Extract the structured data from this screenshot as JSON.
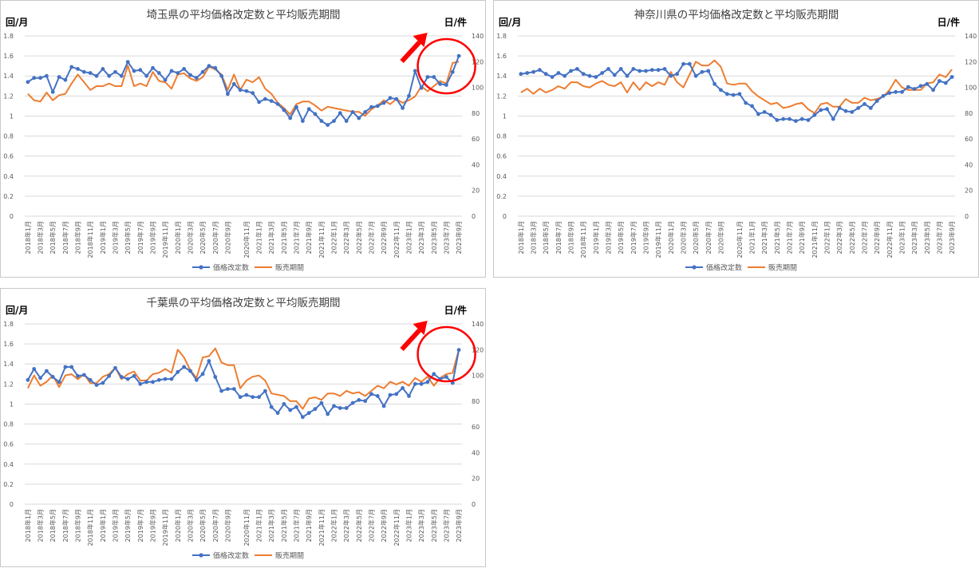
{
  "colors": {
    "price_revisions": "#4472c4",
    "sale_period": "#ed7d31",
    "highlight": "#ff0000"
  },
  "chart_data": [
    {
      "type": "line",
      "title": "埼玉県の平均価格改定数と平均販売期間",
      "left_unit": "回/月",
      "right_unit": "日/件",
      "y_left": {
        "range": [
          0,
          1.8
        ],
        "ticks": [
          "0",
          "0.2",
          "0.4",
          "0.6",
          "0.8",
          "1",
          "1.2",
          "1.4",
          "1.6",
          "1.8"
        ]
      },
      "y_right": {
        "range": [
          0,
          140
        ],
        "ticks": [
          "0",
          "20",
          "40",
          "60",
          "80",
          "100",
          "120",
          "140"
        ]
      },
      "x_labels": [
        "2018年1月",
        "2018年3月",
        "2018年5月",
        "2018年7月",
        "2018年9月",
        "2018年11月",
        "2019年1月",
        "2019年3月",
        "2019年5月",
        "2019年7月",
        "2019年9月",
        "2019年11月",
        "2020年1月",
        "2020年3月",
        "2020年5月",
        "2020年7月",
        "2020年9月",
        "2020年11月",
        "2021年1月",
        "2021年3月",
        "2021年5月",
        "2021年7月",
        "2021年9月",
        "2021年11月",
        "2022年1月",
        "2022年3月",
        "2022年5月",
        "2022年7月",
        "2022年9月",
        "2022年11月",
        "2023年1月",
        "2023年3月",
        "2023年5月",
        "2023年7月",
        "2023年9月"
      ],
      "highlight": true,
      "series": [
        {
          "name": "価格改定数",
          "axis": "left",
          "marker": true,
          "values": [
            1.34,
            1.38,
            1.38,
            1.4,
            1.24,
            1.39,
            1.36,
            1.49,
            1.47,
            1.44,
            1.43,
            1.4,
            1.47,
            1.4,
            1.44,
            1.4,
            1.54,
            1.45,
            1.46,
            1.4,
            1.48,
            1.43,
            1.36,
            1.45,
            1.43,
            1.47,
            1.41,
            1.38,
            1.44,
            1.5,
            1.48,
            1.4,
            1.22,
            1.32,
            1.26,
            1.25,
            1.23,
            1.14,
            1.17,
            1.15,
            1.12,
            1.06,
            0.98,
            1.09,
            0.95,
            1.07,
            1.02,
            0.95,
            0.91,
            0.95,
            1.03,
            0.95,
            1.04,
            0.98,
            1.04,
            1.09,
            1.1,
            1.13,
            1.18,
            1.17,
            1.08,
            1.2,
            1.45,
            1.28,
            1.39,
            1.39,
            1.32,
            1.31,
            1.44,
            1.6
          ]
        },
        {
          "name": "販売期間",
          "axis": "right",
          "marker": false,
          "values": [
            95,
            90,
            89,
            96,
            90,
            94,
            95,
            103,
            110,
            104,
            98,
            101,
            101,
            103,
            101,
            101,
            117,
            101,
            103,
            101,
            112,
            105,
            104,
            99,
            110,
            111,
            107,
            105,
            108,
            116,
            114,
            110,
            98,
            110,
            98,
            106,
            104,
            108,
            99,
            95,
            88,
            84,
            79,
            87,
            89,
            89,
            86,
            82,
            85,
            84,
            83,
            82,
            81,
            81,
            78,
            83,
            86,
            90,
            87,
            91,
            88,
            90,
            93,
            101,
            97,
            101,
            105,
            103,
            119,
            120
          ]
        }
      ]
    },
    {
      "type": "line",
      "title": "神奈川県の平均価格改定数と平均販売期間",
      "left_unit": "回/月",
      "right_unit": "日/件",
      "y_left": {
        "range": [
          0,
          1.8
        ],
        "ticks": [
          "0",
          "0.2",
          "0.4",
          "0.6",
          "0.8",
          "1",
          "1.2",
          "1.4",
          "1.6",
          "1.8"
        ]
      },
      "y_right": {
        "range": [
          0,
          140
        ],
        "ticks": [
          "0",
          "20",
          "40",
          "60",
          "80",
          "100",
          "120",
          "140"
        ]
      },
      "x_labels": [
        "2018年1月",
        "2018年3月",
        "2018年5月",
        "2018年7月",
        "2018年9月",
        "2018年11月",
        "2019年1月",
        "2019年3月",
        "2019年5月",
        "2019年7月",
        "2019年9月",
        "2019年11月",
        "2020年1月",
        "2020年3月",
        "2020年5月",
        "2020年7月",
        "2020年9月",
        "2020年11月",
        "2021年1月",
        "2021年3月",
        "2021年5月",
        "2021年7月",
        "2021年9月",
        "2021年11月",
        "2022年1月",
        "2022年3月",
        "2022年5月",
        "2022年7月",
        "2022年9月",
        "2022年11月",
        "2023年1月",
        "2023年3月",
        "2023年5月",
        "2023年7月",
        "2023年9月"
      ],
      "highlight": false,
      "series": [
        {
          "name": "価格改定数",
          "axis": "left",
          "marker": true,
          "values": [
            1.42,
            1.43,
            1.44,
            1.46,
            1.42,
            1.39,
            1.43,
            1.4,
            1.45,
            1.47,
            1.42,
            1.4,
            1.39,
            1.43,
            1.47,
            1.41,
            1.47,
            1.4,
            1.47,
            1.45,
            1.45,
            1.46,
            1.46,
            1.47,
            1.4,
            1.42,
            1.52,
            1.52,
            1.4,
            1.44,
            1.45,
            1.32,
            1.26,
            1.22,
            1.21,
            1.22,
            1.13,
            1.1,
            1.02,
            1.04,
            1.01,
            0.96,
            0.97,
            0.97,
            0.95,
            0.97,
            0.96,
            1.01,
            1.06,
            1.07,
            0.97,
            1.08,
            1.05,
            1.04,
            1.08,
            1.12,
            1.08,
            1.15,
            1.2,
            1.23,
            1.24,
            1.24,
            1.29,
            1.27,
            1.3,
            1.32,
            1.26,
            1.35,
            1.33,
            1.39
          ]
        },
        {
          "name": "販売期間",
          "axis": "right",
          "marker": false,
          "values": [
            96,
            99,
            95,
            99,
            96,
            98,
            101,
            99,
            104,
            104,
            101,
            100,
            103,
            105,
            102,
            101,
            104,
            96,
            104,
            98,
            104,
            101,
            104,
            102,
            112,
            104,
            100,
            110,
            120,
            117,
            117,
            121,
            116,
            103,
            102,
            103,
            103,
            97,
            93,
            90,
            87,
            88,
            84,
            85,
            87,
            88,
            83,
            80,
            87,
            88,
            85,
            85,
            91,
            88,
            88,
            92,
            90,
            91,
            93,
            98,
            106,
            100,
            98,
            98,
            98,
            103,
            104,
            110,
            108,
            114
          ]
        }
      ]
    },
    {
      "type": "line",
      "title": "千葉県の平均価格改定数と平均販売期間",
      "left_unit": "回/月",
      "right_unit": "日/件",
      "y_left": {
        "range": [
          0,
          1.8
        ],
        "ticks": [
          "0",
          "0.2",
          "0.4",
          "0.6",
          "0.8",
          "1",
          "1.2",
          "1.4",
          "1.6",
          "1.8"
        ]
      },
      "y_right": {
        "range": [
          0,
          140
        ],
        "ticks": [
          "0",
          "20",
          "40",
          "60",
          "80",
          "100",
          "120",
          "140"
        ]
      },
      "x_labels": [
        "2018年1月",
        "2018年3月",
        "2018年5月",
        "2018年7月",
        "2018年9月",
        "2018年11月",
        "2019年1月",
        "2019年3月",
        "2019年5月",
        "2019年7月",
        "2019年9月",
        "2019年11月",
        "2020年1月",
        "2020年3月",
        "2020年5月",
        "2020年7月",
        "2020年9月",
        "2020年11月",
        "2021年1月",
        "2021年3月",
        "2021年5月",
        "2021年7月",
        "2021年9月",
        "2021年11月",
        "2022年1月",
        "2022年3月",
        "2022年5月",
        "2022年7月",
        "2022年9月",
        "2022年11月",
        "2023年1月",
        "2023年3月",
        "2023年5月",
        "2023年7月",
        "2023年9月"
      ],
      "highlight": true,
      "series": [
        {
          "name": "価格改定数",
          "axis": "left",
          "marker": true,
          "values": [
            1.24,
            1.35,
            1.26,
            1.33,
            1.27,
            1.22,
            1.37,
            1.37,
            1.28,
            1.29,
            1.24,
            1.19,
            1.21,
            1.28,
            1.36,
            1.27,
            1.25,
            1.28,
            1.2,
            1.22,
            1.22,
            1.24,
            1.25,
            1.25,
            1.32,
            1.37,
            1.33,
            1.24,
            1.3,
            1.43,
            1.27,
            1.13,
            1.15,
            1.15,
            1.07,
            1.09,
            1.07,
            1.07,
            1.13,
            0.97,
            0.91,
            1.0,
            0.94,
            0.97,
            0.87,
            0.91,
            0.95,
            1.01,
            0.9,
            0.98,
            0.96,
            0.96,
            1.01,
            1.04,
            1.03,
            1.1,
            1.08,
            0.98,
            1.09,
            1.1,
            1.16,
            1.08,
            1.2,
            1.2,
            1.22,
            1.3,
            1.25,
            1.27,
            1.21,
            1.54
          ]
        },
        {
          "name": "販売期間",
          "axis": "right",
          "marker": false,
          "values": [
            90,
            100,
            92,
            95,
            100,
            91,
            100,
            101,
            97,
            101,
            94,
            94,
            99,
            101,
            106,
            97,
            101,
            103,
            96,
            96,
            101,
            102,
            105,
            102,
            120,
            114,
            104,
            98,
            114,
            115,
            121,
            110,
            108,
            108,
            90,
            96,
            99,
            100,
            96,
            86,
            85,
            84,
            80,
            80,
            74,
            82,
            83,
            81,
            86,
            86,
            84,
            88,
            86,
            87,
            84,
            88,
            92,
            90,
            95,
            93,
            95,
            92,
            98,
            95,
            99,
            92,
            98,
            101,
            102,
            120
          ]
        }
      ]
    }
  ]
}
